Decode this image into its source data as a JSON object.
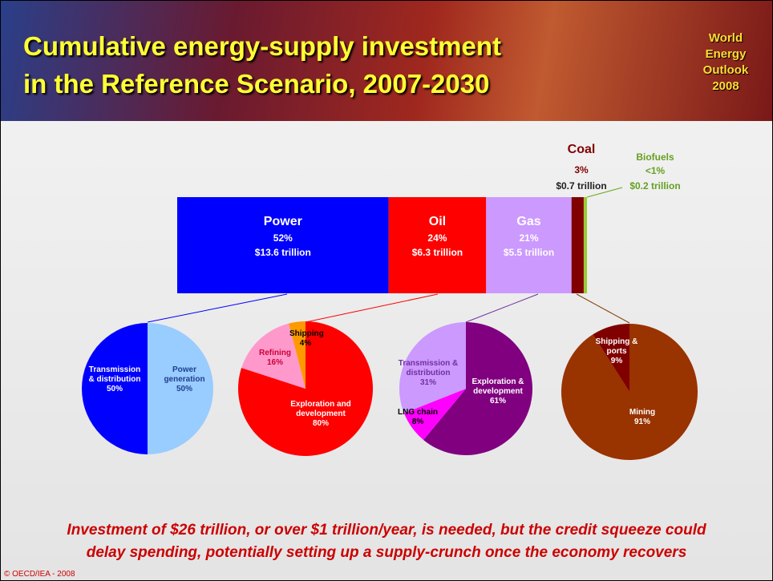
{
  "header": {
    "title": [
      "Cumulative energy-supply investment",
      "in the Reference Scenario, 2007-2030"
    ],
    "logo": [
      "World",
      "Energy",
      "Outlook",
      "2008"
    ]
  },
  "chart_data": [
    {
      "type": "stacked-bar",
      "series": [
        {
          "name": "Power",
          "color": "#0000ff",
          "values": [
            52
          ],
          "value_labels": [
            "52%"
          ],
          "amounts": [
            13.6
          ],
          "amount_labels": [
            "$13.6 trillion"
          ]
        },
        {
          "name": "Oil",
          "color": "#ff0000",
          "values": [
            24
          ],
          "value_labels": [
            "24%"
          ],
          "amounts": [
            6.3
          ],
          "amount_labels": [
            "$6.3 trillion"
          ]
        },
        {
          "name": "Gas",
          "color": "#cc99ff",
          "values": [
            21
          ],
          "value_labels": [
            "21%"
          ],
          "amounts": [
            5.5
          ],
          "amount_labels": [
            "$5.5 trillion"
          ]
        },
        {
          "name": "Coal",
          "color": "#800000",
          "values": [
            3
          ],
          "value_labels": [
            "3%"
          ],
          "amounts": [
            0.7
          ],
          "amount_labels": [
            "$0.7 trillion"
          ]
        },
        {
          "name": "Biofuels",
          "color": "#99cc33",
          "values": [
            0.8
          ],
          "value_labels": [
            "<1%"
          ],
          "amounts": [
            0.2
          ],
          "amount_labels": [
            "$0.2 trillion"
          ]
        }
      ]
    },
    {
      "type": "pie",
      "categories": [
        "Power generation",
        "Transmission & distribution"
      ],
      "values": [
        50,
        50
      ],
      "value_labels": [
        "50%",
        "50%"
      ],
      "colors": [
        "#99ccff",
        "#0000ff"
      ]
    },
    {
      "type": "pie",
      "categories": [
        "Exploration and development",
        "Refining",
        "Shipping"
      ],
      "values": [
        80,
        16,
        4
      ],
      "value_labels": [
        "80%",
        "16%",
        "4%"
      ],
      "colors": [
        "#ff0000",
        "#ff99cc",
        "#ff9900"
      ]
    },
    {
      "type": "pie",
      "categories": [
        "Exploration & development",
        "LNG chain",
        "Transmission & distribution"
      ],
      "values": [
        61,
        8,
        31
      ],
      "value_labels": [
        "61%",
        "8%",
        "31%"
      ],
      "colors": [
        "#800080",
        "#ff00ff",
        "#cc99ff"
      ]
    },
    {
      "type": "pie",
      "categories": [
        "Mining",
        "Shipping & ports"
      ],
      "values": [
        91,
        9
      ],
      "value_labels": [
        "91%",
        "9%"
      ],
      "colors": [
        "#993300",
        "#800000"
      ]
    }
  ],
  "footer": {
    "message": [
      "Investment  of $26 trillion, or over $1 trillion/year, is needed, but the credit squeeze could",
      "delay spending, potentially setting up a supply-crunch once the economy recovers"
    ],
    "copyright": "© OECD/IEA - 2008"
  }
}
